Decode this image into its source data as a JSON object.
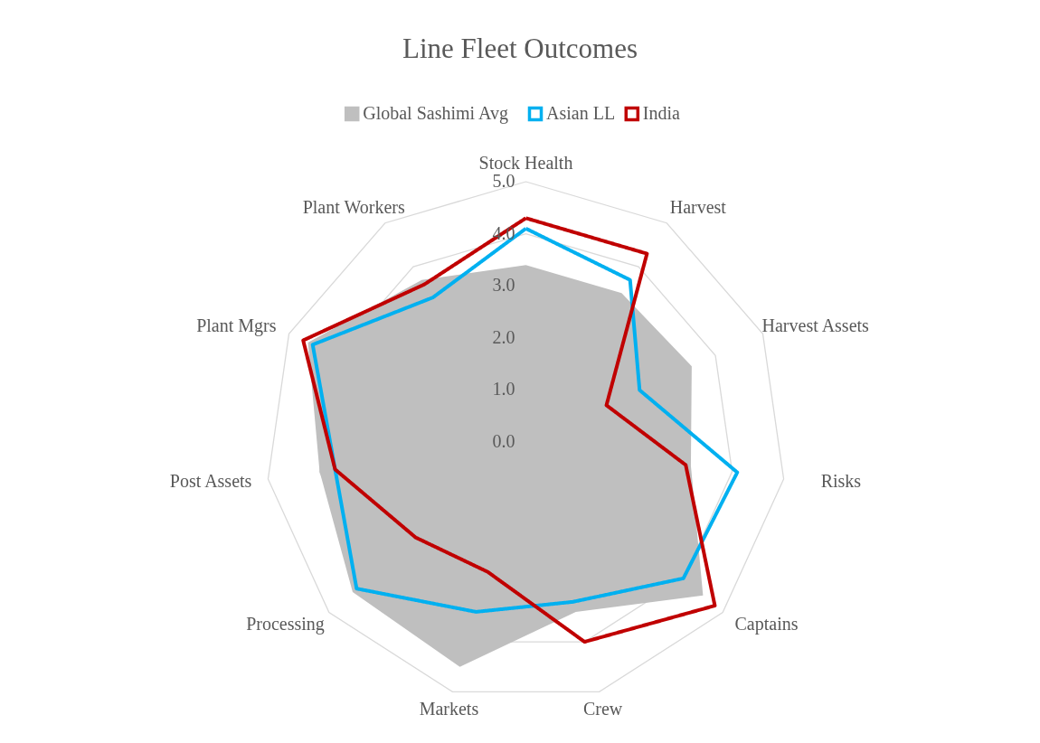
{
  "chart_data": {
    "type": "radar",
    "title": "Line Fleet Outcomes",
    "categories": [
      "Stock Health",
      "Harvest",
      "Harvest Assets",
      "Risks",
      "Captains",
      "Crew",
      "Markets",
      "Processing",
      "Post Assets",
      "Plant Mgrs",
      "Plant Workers"
    ],
    "series": [
      {
        "name": "Global Sashimi Avg",
        "type": "area",
        "color": "#bfbfbf",
        "values": [
          3.4,
          3.4,
          3.5,
          3.2,
          4.5,
          3.4,
          4.5,
          4.4,
          4.0,
          4.6,
          3.7
        ]
      },
      {
        "name": "Asian LL",
        "color": "#00b0f0",
        "values": [
          4.1,
          3.7,
          2.4,
          4.1,
          4.0,
          3.2,
          3.4,
          4.3,
          3.7,
          4.5,
          3.3
        ]
      },
      {
        "name": "India",
        "color": "#c00000",
        "values": [
          4.3,
          4.3,
          1.7,
          3.1,
          4.8,
          4.0,
          2.6,
          2.8,
          3.7,
          4.7,
          3.6
        ]
      }
    ],
    "ylim": [
      0,
      5
    ],
    "yticks": [
      {
        "value": 0,
        "label": "0.0"
      },
      {
        "value": 1,
        "label": "1.0"
      },
      {
        "value": 2,
        "label": "2.0"
      },
      {
        "value": 3,
        "label": "3.0"
      },
      {
        "value": 4,
        "label": "4.0"
      },
      {
        "value": 5,
        "label": "5.0"
      }
    ],
    "grid": true,
    "legend": "top",
    "marker": "none",
    "line_style": "solid"
  }
}
